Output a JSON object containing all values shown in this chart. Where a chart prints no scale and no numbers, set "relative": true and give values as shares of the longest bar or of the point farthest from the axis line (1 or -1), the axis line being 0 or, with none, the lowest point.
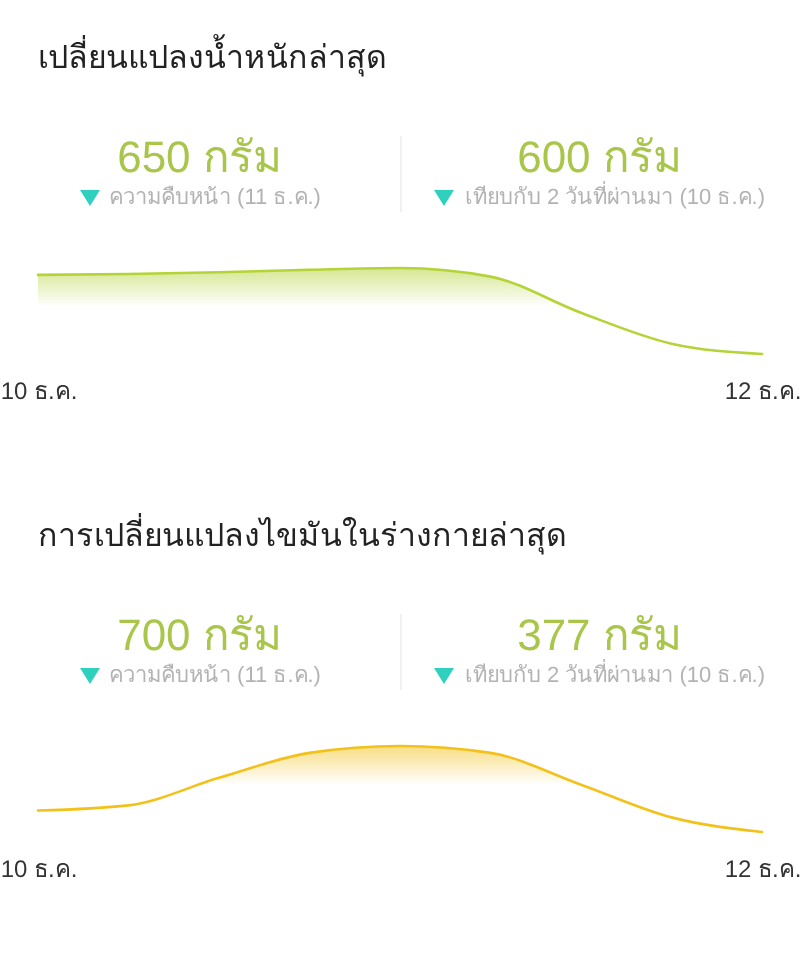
{
  "chart_data": [
    {
      "type": "area",
      "title": "เปลี่ยนแปลงน้ำหนักล่าสุด",
      "annotations": [
        "650 กรัม",
        "ความคืบหน้า (11 ธ.ค.)",
        "600 กรัม",
        "เทียบกับ 2 วันที่ผ่านมา (10 ธ.ค.)"
      ],
      "categories": [
        "10 ธ.ค.",
        null,
        null,
        null,
        null,
        null,
        null,
        null,
        "12 ธ.ค."
      ],
      "values": [
        0.92,
        0.93,
        0.95,
        0.98,
        1,
        0.9,
        0.48,
        0.12,
        0
      ],
      "color": "#b4d336",
      "relative": true
    },
    {
      "type": "area",
      "title": "การเปลี่ยนแปลงไขมันในร่างกายล่าสุด",
      "annotations": [
        "700 กรัม",
        "ความคืบหน้า (11 ธ.ค.)",
        "377 กรัม",
        "เทียบกับ 2 วันที่ผ่านมา (10 ธ.ค.)"
      ],
      "categories": [
        "10 ธ.ค.",
        null,
        null,
        null,
        null,
        null,
        null,
        null,
        "12 ธ.ค."
      ],
      "values": [
        0.25,
        0.31,
        0.63,
        0.92,
        1,
        0.92,
        0.55,
        0.17,
        0
      ],
      "color": "#f2c21b",
      "relative": true
    }
  ]
}
